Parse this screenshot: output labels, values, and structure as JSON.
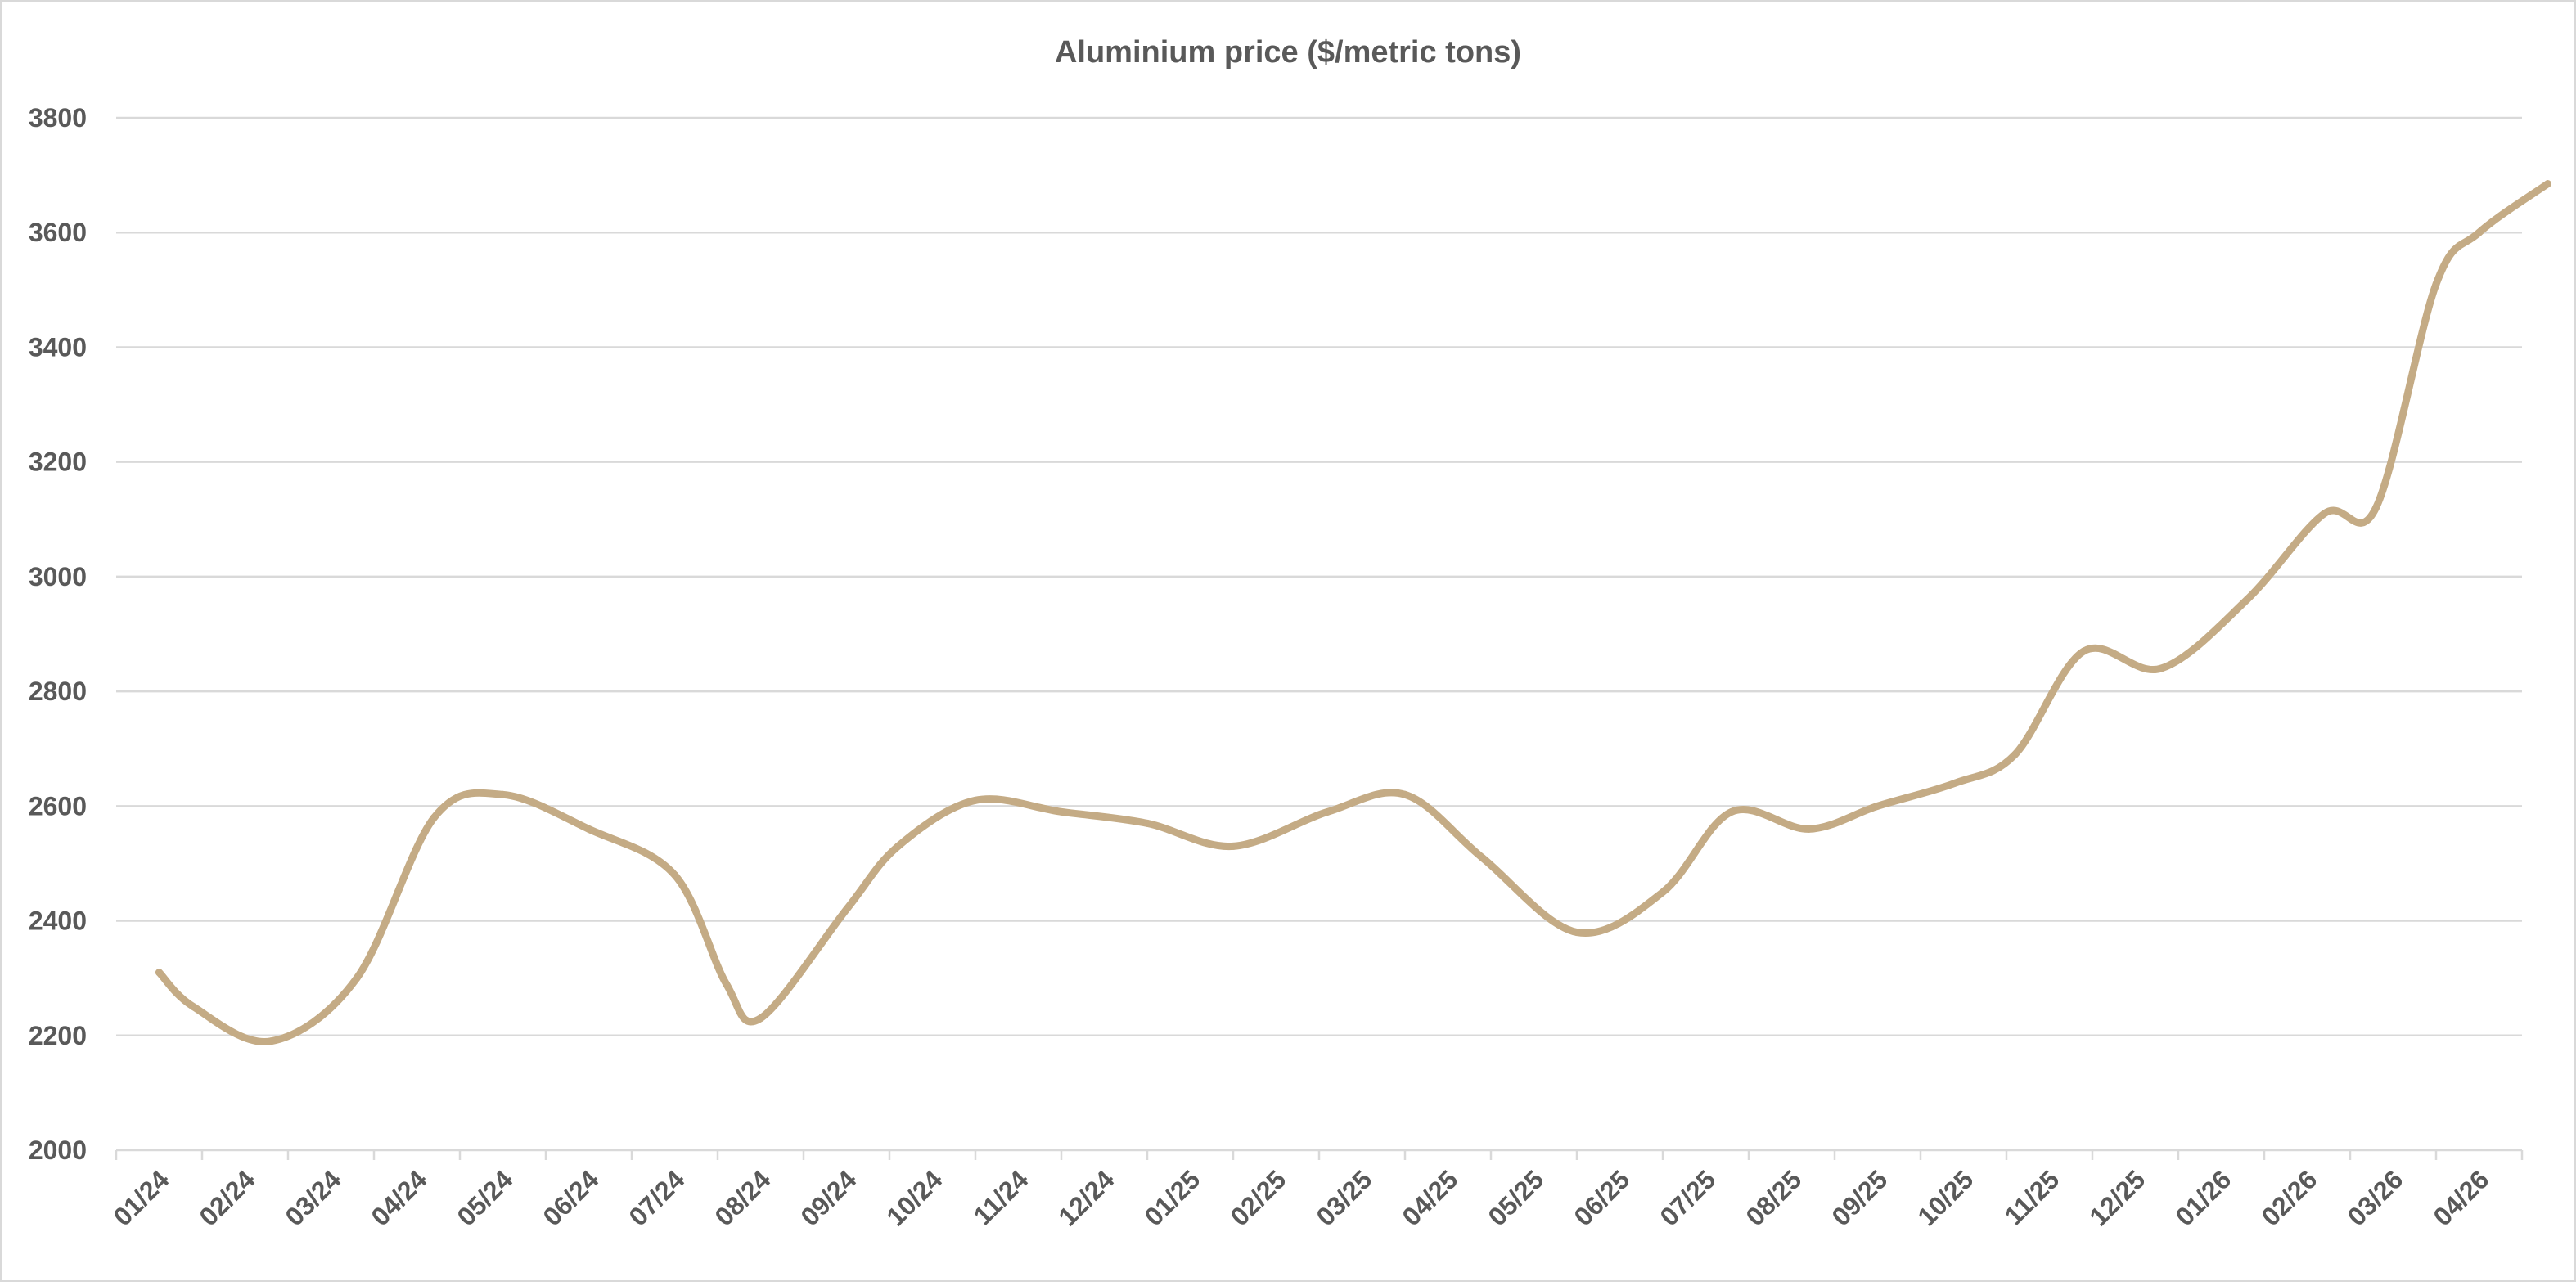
{
  "chart_data": {
    "type": "line",
    "title": "Aluminium price ($/metric tons)",
    "xlabel": "",
    "ylabel": "",
    "ylim": [
      2000,
      3800
    ],
    "yticks": [
      "2000",
      "2200",
      "2400",
      "2600",
      "2800",
      "3000",
      "3200",
      "3400",
      "3600",
      "3800"
    ],
    "categories": [
      "01/24",
      "02/24",
      "03/24",
      "04/24",
      "05/24",
      "06/24",
      "07/24",
      "08/24",
      "09/24",
      "10/24",
      "11/24",
      "12/24",
      "01/25",
      "02/25",
      "03/25",
      "04/25",
      "05/25",
      "06/25",
      "07/25",
      "08/25",
      "09/25",
      "10/25",
      "11/25",
      "12/25",
      "01/26",
      "02/26",
      "03/26",
      "04/26"
    ],
    "series": [
      {
        "color": "#c4ab85",
        "x": [
          0.0,
          0.4,
          1.3,
          2.3,
          3.2,
          4.0,
          5.0,
          6.0,
          6.6,
          7.0,
          8.0,
          8.6,
          9.5,
          10.5,
          11.5,
          12.5,
          13.6,
          14.5,
          15.4,
          16.5,
          17.5,
          18.3,
          19.2,
          20.0,
          20.9,
          21.6,
          22.4,
          23.3,
          24.3,
          25.2,
          25.8,
          26.5,
          27.0,
          27.8
        ],
        "y": [
          2310,
          2250,
          2190,
          2300,
          2580,
          2620,
          2560,
          2480,
          2290,
          2230,
          2420,
          2530,
          2610,
          2590,
          2570,
          2530,
          2590,
          2620,
          2510,
          2380,
          2450,
          2590,
          2560,
          2600,
          2640,
          2690,
          2870,
          2840,
          2960,
          3110,
          3120,
          3510,
          3600,
          3685
        ]
      }
    ]
  }
}
